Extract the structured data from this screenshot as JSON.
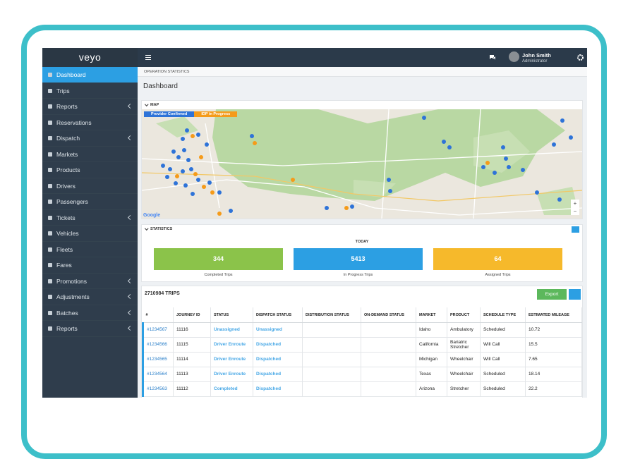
{
  "sidebar": {
    "logo": "veyo",
    "menu": [
      {
        "label": "Dashboard",
        "active": true
      },
      {
        "label": "Trips"
      },
      {
        "label": "Reports",
        "submenu": true
      },
      {
        "label": "Reservations"
      },
      {
        "label": "Dispatch",
        "submenu": true
      },
      {
        "label": "Markets"
      },
      {
        "label": "Products"
      },
      {
        "label": "Drivers"
      },
      {
        "label": "Passengers"
      },
      {
        "label": "Tickets",
        "submenu": true
      },
      {
        "label": "Vehicles"
      },
      {
        "label": "Fleets"
      },
      {
        "label": "Fares"
      },
      {
        "label": "Promotions",
        "submenu": true
      },
      {
        "label": "Adjustments",
        "submenu": true
      },
      {
        "label": "Batches",
        "submenu": true
      },
      {
        "label": "Reports",
        "submenu": true
      }
    ]
  },
  "header": {
    "user": {
      "name": "John Smith",
      "role": "Administrator"
    }
  },
  "page": {
    "breadcrumb": "OPERATION STATISTICS",
    "title": "Dashboard"
  },
  "map": {
    "label": "MAP",
    "legend": [
      "Provider Confirmed",
      "IDP in Progress"
    ],
    "attribution": "Google"
  },
  "statistics": {
    "label": "STATISTICS",
    "period": "TODAY",
    "cards": [
      {
        "value": "344",
        "label": "Completed Trips",
        "color": "#8bc34a"
      },
      {
        "value": "5413",
        "label": "In Progress Trips",
        "color": "#2c9fe3"
      },
      {
        "value": "64",
        "label": "Assigned Trips",
        "color": "#f6b92b"
      }
    ]
  },
  "trips": {
    "count_label": "2710984 TRIPS",
    "export": "Export",
    "columns": [
      "#",
      "JOURNEY ID",
      "STATUS",
      "DISPATCH STATUS",
      "DISTRIBUTION STATUS",
      "ON-DEMAND STATUS",
      "MARKET",
      "PRODUCT",
      "SCHEDULE TYPE",
      "ESTIMATED MILEAGE"
    ],
    "rows": [
      [
        "#1234567",
        "11116",
        "Unassigned",
        "Unassigned",
        "",
        "",
        "Idaho",
        "Ambulatory",
        "Scheduled",
        "10.72"
      ],
      [
        "#1234566",
        "11115",
        "Driver Enroute",
        "Dispatched",
        "",
        "",
        "California",
        "Bariatric Stretcher",
        "Will Call",
        "15.5"
      ],
      [
        "#1234565",
        "11114",
        "Driver Enroute",
        "Dispatched",
        "",
        "",
        "Michigan",
        "Wheelchair",
        "Will Call",
        "7.65"
      ],
      [
        "#1234564",
        "11113",
        "Driver Enroute",
        "Dispatched",
        "",
        "",
        "Texas",
        "Wheelchair",
        "Scheduled",
        "18.14"
      ],
      [
        "#1234563",
        "11112",
        "Completed",
        "Dispatched",
        "",
        "",
        "Arizona",
        "Stretcher",
        "Scheduled",
        "22.2"
      ]
    ]
  }
}
